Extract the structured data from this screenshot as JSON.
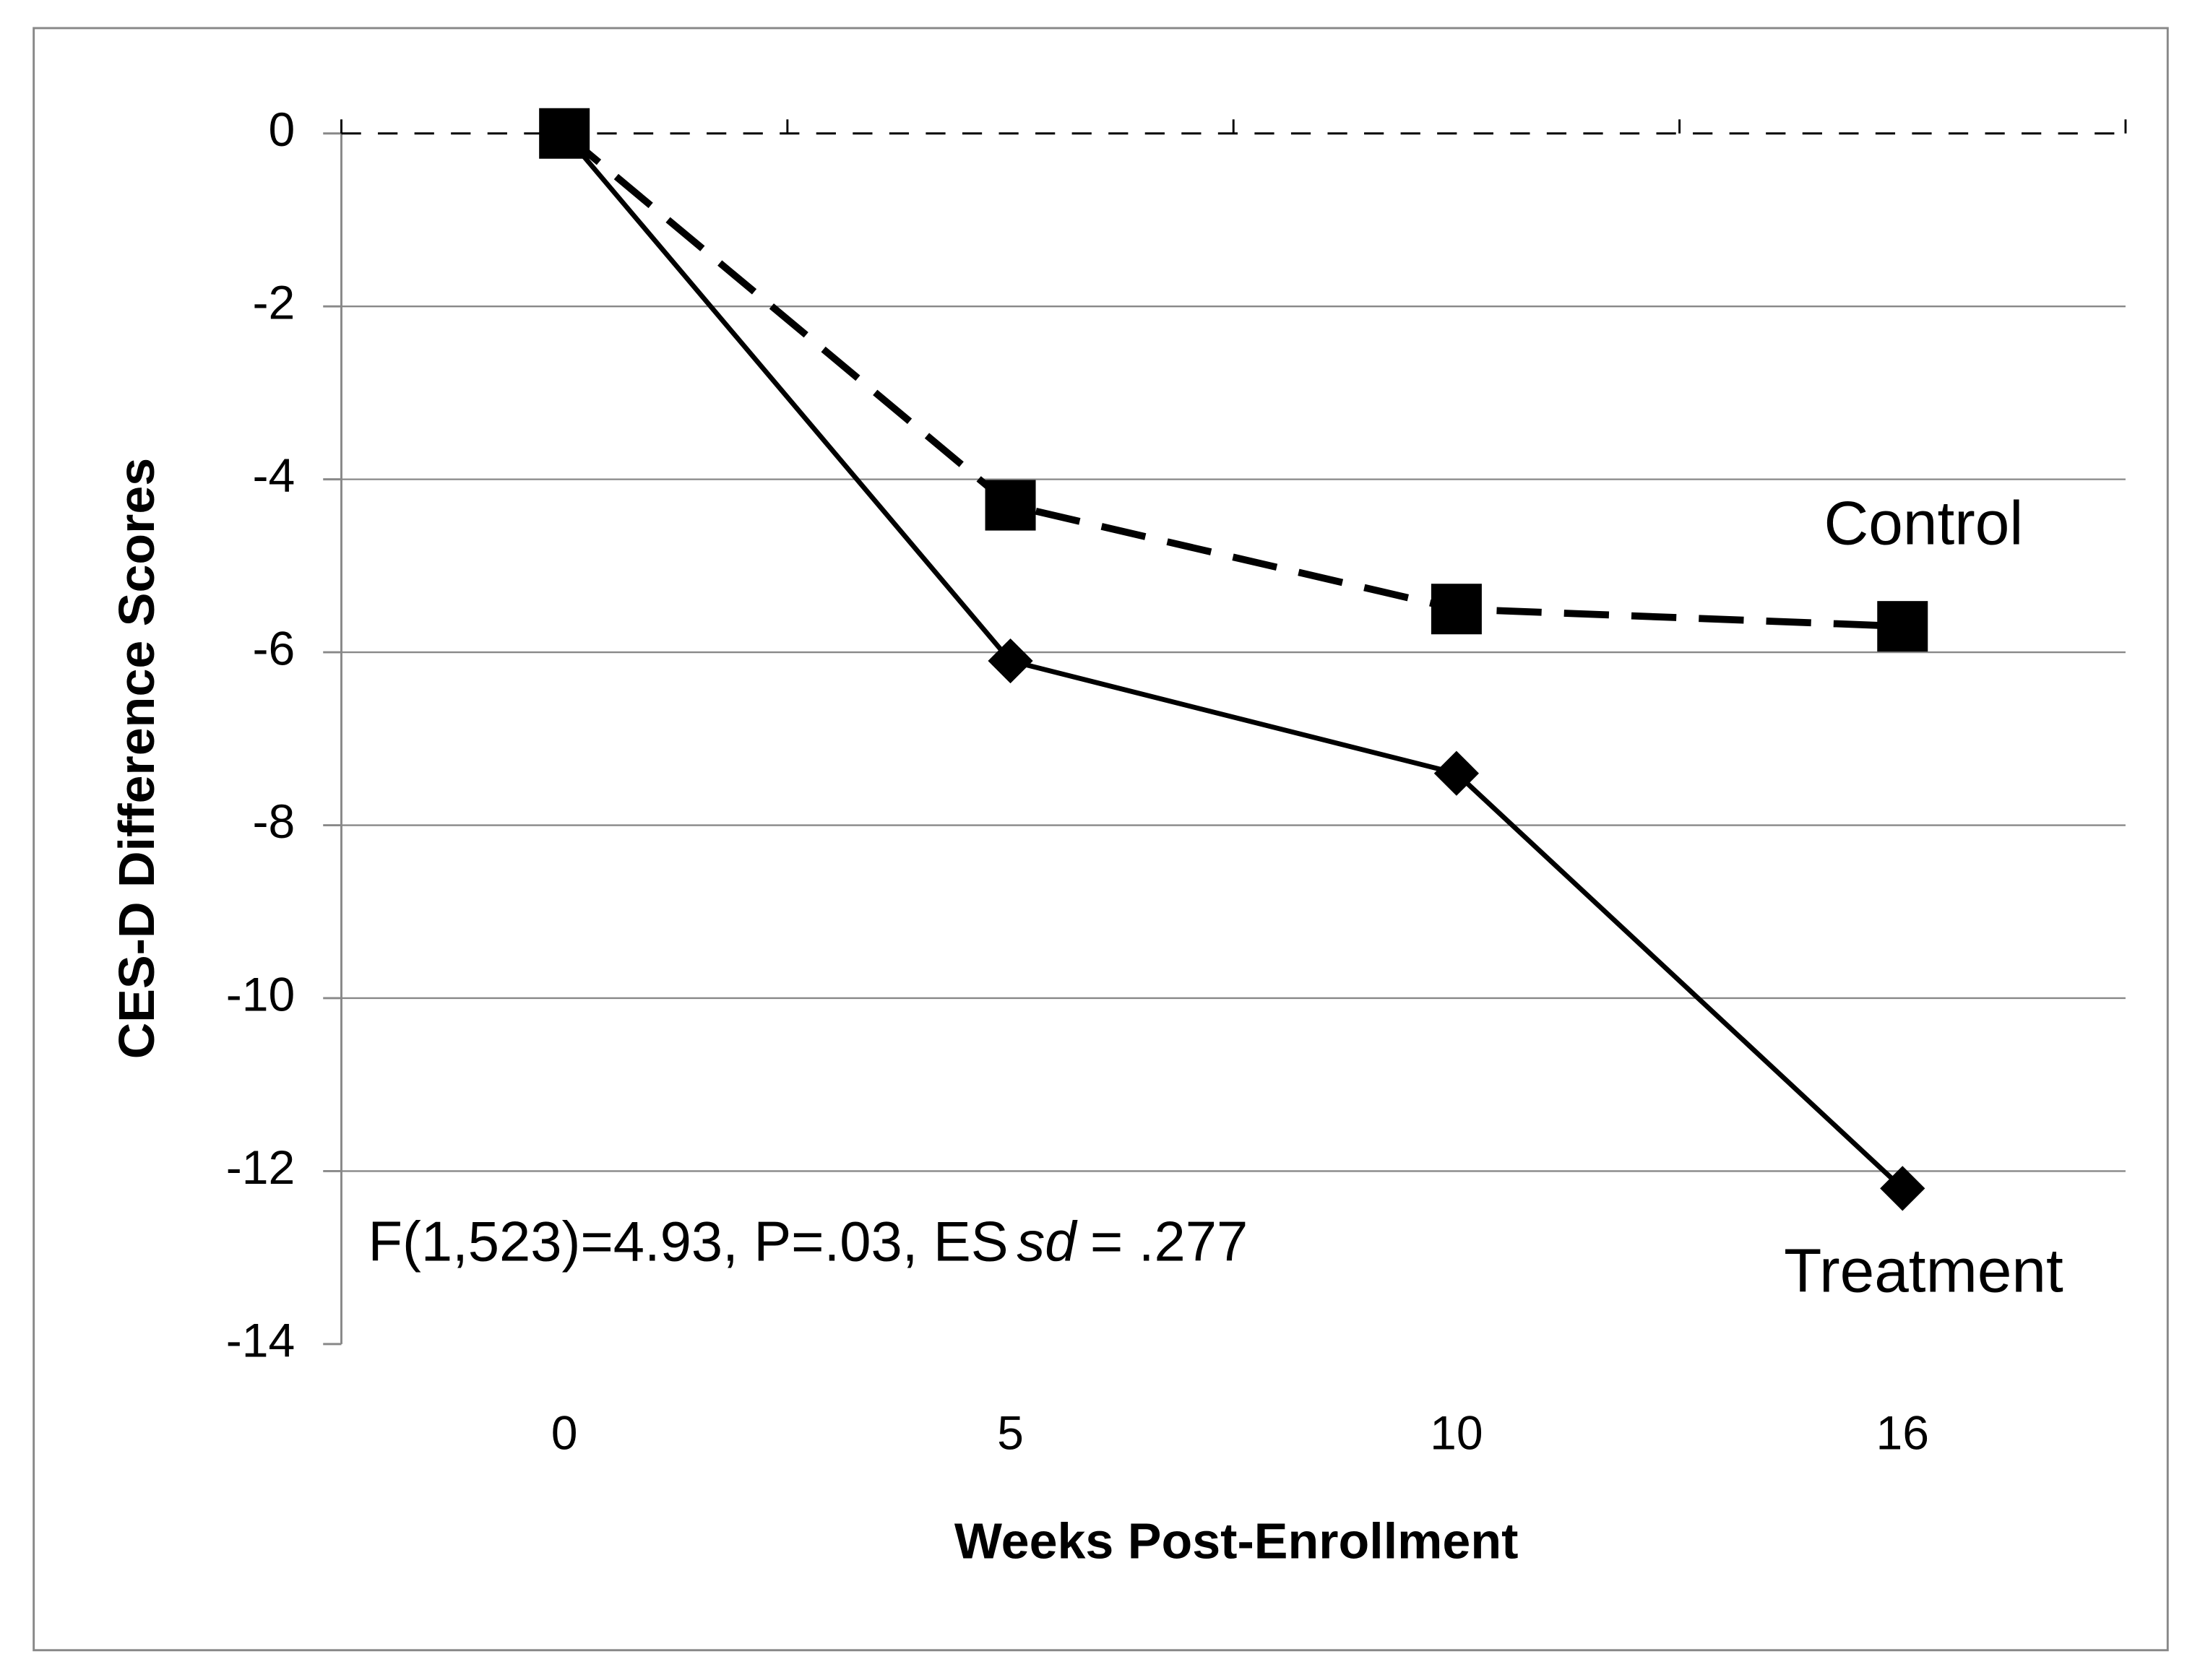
{
  "chart_data": {
    "type": "line",
    "categories": [
      "0",
      "5",
      "10",
      "16"
    ],
    "series": [
      {
        "name": "Control",
        "color": "#000000",
        "line": "dashed",
        "marker": "square",
        "values": [
          0,
          -4.3,
          -5.5,
          -5.7
        ]
      },
      {
        "name": "Treatment",
        "color": "#000000",
        "line": "solid",
        "marker": "diamond",
        "values": [
          0,
          -6.1,
          -7.4,
          -12.2
        ]
      }
    ],
    "ylim": [
      -14,
      0
    ],
    "yticks": [
      0,
      -2,
      -4,
      -6,
      -8,
      -10,
      -12,
      -14
    ],
    "grid": true,
    "x_label": "Weeks Post-Enrollment",
    "y_label": "CES-D Difference Scores",
    "annotation": [
      "F(1,523)=4.93, P=.03, ES",
      "sd",
      "= .277"
    ]
  }
}
